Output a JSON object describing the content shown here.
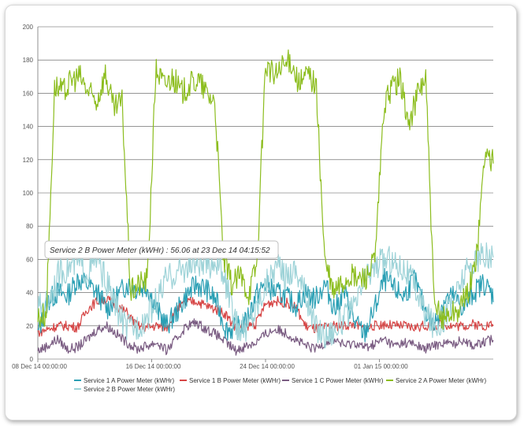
{
  "chart_data": {
    "type": "line",
    "title": "",
    "xlabel": "",
    "ylabel": "",
    "ylim": [
      0,
      200
    ],
    "yticks": [
      0,
      20,
      40,
      60,
      80,
      100,
      120,
      140,
      160,
      180,
      200
    ],
    "x_start": "08 Dec 14",
    "x_days": 32,
    "xticks": [
      {
        "label": "08 Dec 14 00:00:00",
        "day": 0
      },
      {
        "label": "16 Dec 14 00:00:00",
        "day": 8
      },
      {
        "label": "24 Dec 14 00:00:00",
        "day": 16
      },
      {
        "label": "01 Jan 15 00:00:00",
        "day": 24
      }
    ],
    "grid": true,
    "legend_position": "bottom",
    "tooltip": "Service 2 B Power Meter (kWHr) : 56.06 at 23 Dec 14 04:15:52",
    "series": [
      {
        "name": "Service 1 A Power Meter (kWHr)",
        "color": "#2a9fb4",
        "values": [
          15,
          35,
          40,
          38,
          48,
          45,
          40,
          30,
          38,
          45,
          42,
          44,
          30,
          20,
          28,
          38,
          45,
          42,
          35,
          18,
          18,
          22,
          38,
          45,
          40,
          38,
          32,
          40,
          36,
          45,
          30,
          40,
          22,
          15,
          30,
          48,
          42,
          38,
          48,
          32,
          20,
          35,
          38,
          30,
          40,
          46,
          38
        ]
      },
      {
        "name": "Service 1 B Power Meter (kWHr)",
        "color": "#d64545",
        "values": [
          16,
          18,
          20,
          20,
          19,
          30,
          35,
          36,
          32,
          28,
          20,
          19,
          20,
          19,
          30,
          34,
          35,
          32,
          30,
          27,
          18,
          20,
          21,
          33,
          35,
          34,
          32,
          20,
          18,
          19,
          20,
          20,
          21,
          18,
          20,
          21,
          20,
          20,
          19,
          20,
          20,
          21,
          20,
          20,
          21,
          20,
          21
        ]
      },
      {
        "name": "Service 1 C Power Meter (kWHr)",
        "color": "#7a5c82",
        "values": [
          5,
          8,
          12,
          6,
          7,
          12,
          18,
          20,
          15,
          10,
          6,
          8,
          10,
          5,
          12,
          20,
          22,
          18,
          15,
          10,
          5,
          8,
          10,
          15,
          18,
          16,
          12,
          8,
          6,
          10,
          12,
          8,
          10,
          7,
          9,
          12,
          8,
          10,
          9,
          6,
          8,
          10,
          9,
          12,
          8,
          10,
          12
        ]
      },
      {
        "name": "Service 2 A Power Meter (kWHr)",
        "color": "#8cbd1e",
        "values": [
          25,
          27,
          165,
          160,
          168,
          170,
          160,
          155,
          172,
          150,
          155,
          40,
          45,
          48,
          175,
          165,
          170,
          160,
          165,
          168,
          160,
          155,
          60,
          45,
          50,
          40,
          58,
          178,
          170,
          175,
          180,
          165,
          172,
          165,
          60,
          40,
          45,
          50,
          48,
          50,
          60,
          150,
          165,
          168,
          140,
          160,
          170,
          30,
          25,
          28,
          30,
          40,
          60,
          125,
          118
        ]
      },
      {
        "name": "Service 2 B Power Meter (kWHr)",
        "color": "#9ed3d8",
        "values": [
          30,
          35,
          50,
          55,
          58,
          52,
          60,
          45,
          30,
          18,
          20,
          25,
          35,
          48,
          52,
          55,
          58,
          55,
          60,
          45,
          20,
          18,
          30,
          45,
          56,
          50,
          55,
          40,
          20,
          15,
          18,
          25,
          30,
          48,
          55,
          60,
          58,
          55,
          45,
          30,
          20,
          25,
          35,
          50,
          58,
          62,
          60
        ]
      }
    ]
  }
}
